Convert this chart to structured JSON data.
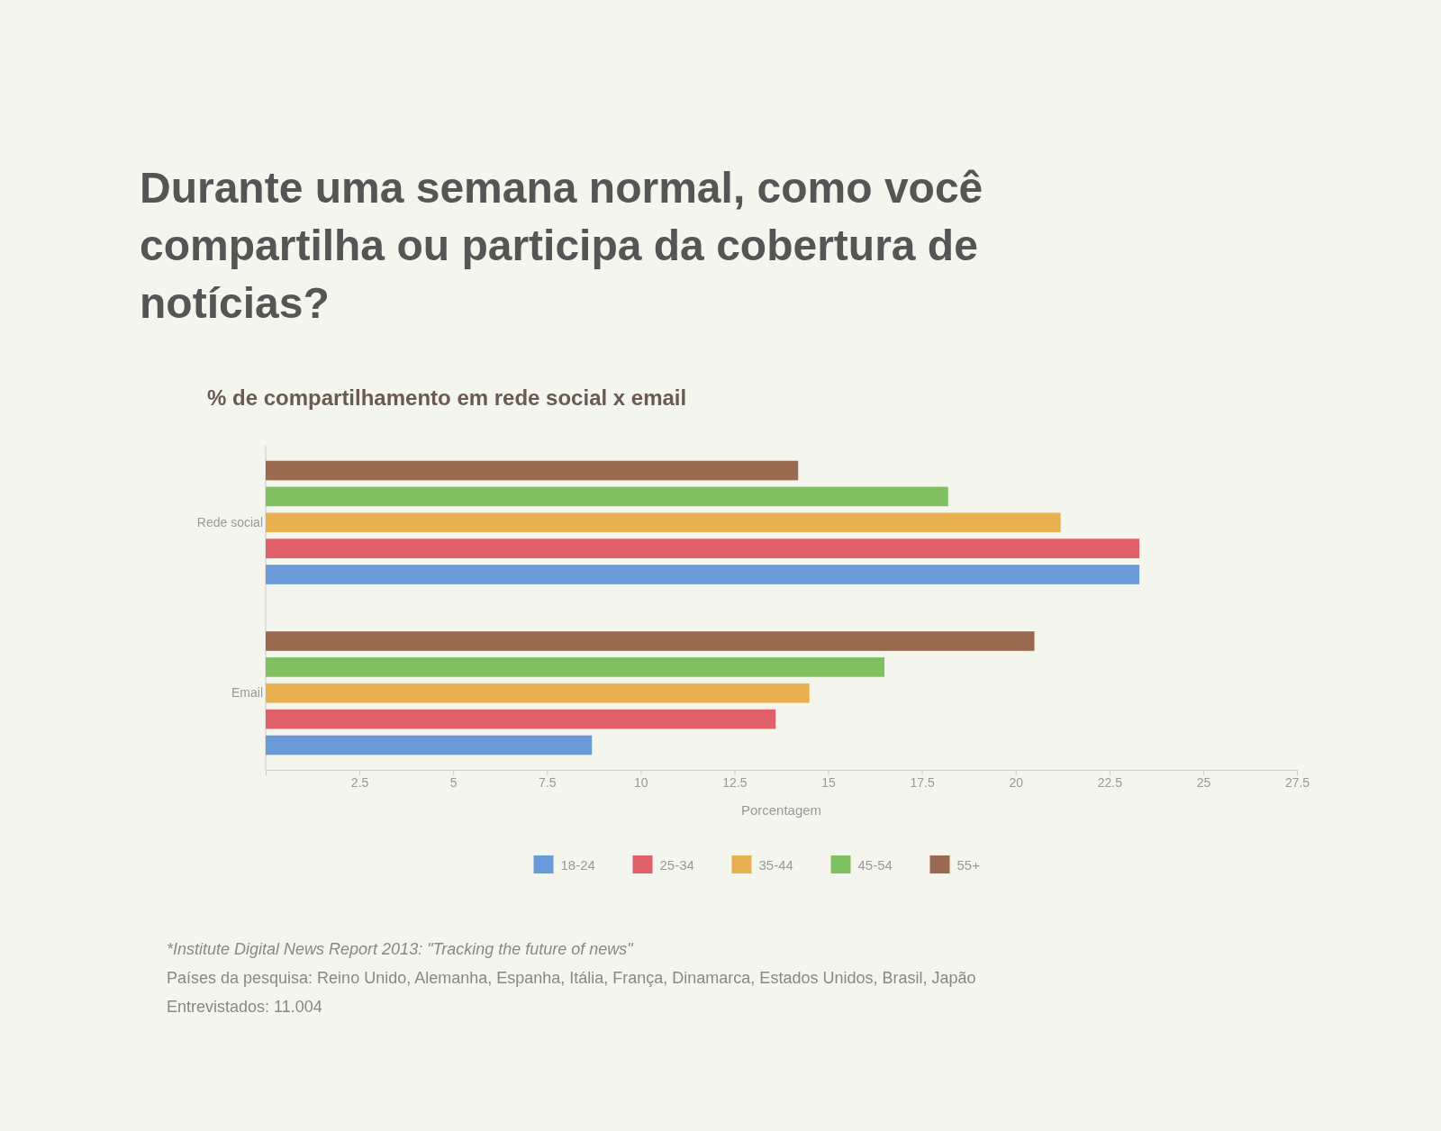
{
  "chart_data": {
    "type": "bar",
    "orientation": "horizontal",
    "title": "Durante uma semana normal, como você compartilha ou participa da cobertura de notícias?",
    "subtitle": "% de compartilhamento em rede social x email",
    "xlabel": "Porcentagem",
    "categories": [
      "Rede social",
      "Email"
    ],
    "series": [
      {
        "name": "18-24",
        "color": "#6a9bd8",
        "values": [
          23.3,
          8.7
        ]
      },
      {
        "name": "25-34",
        "color": "#e0606a",
        "values": [
          23.3,
          13.6
        ]
      },
      {
        "name": "35-44",
        "color": "#e8b050",
        "values": [
          21.2,
          14.5
        ]
      },
      {
        "name": "45-54",
        "color": "#80c060",
        "values": [
          18.2,
          16.5
        ]
      },
      {
        "name": "55+",
        "color": "#9a6a50",
        "values": [
          14.2,
          20.5
        ]
      }
    ],
    "xlim": [
      0,
      27.5
    ],
    "xticks": [
      2.5,
      5,
      7.5,
      10,
      12.5,
      15,
      17.5,
      20,
      22.5,
      25,
      27.5
    ],
    "grid": false,
    "legend": "bottom",
    "annotations": [
      "*Institute Digital News Report 2013: \"Tracking the future of news\"",
      "Países da pesquisa: Reino Unido, Alemanha, Espanha, Itália, França, Dinamarca, Estados Unidos, Brasil, Japão",
      "Entrevistados: 11.004"
    ]
  }
}
